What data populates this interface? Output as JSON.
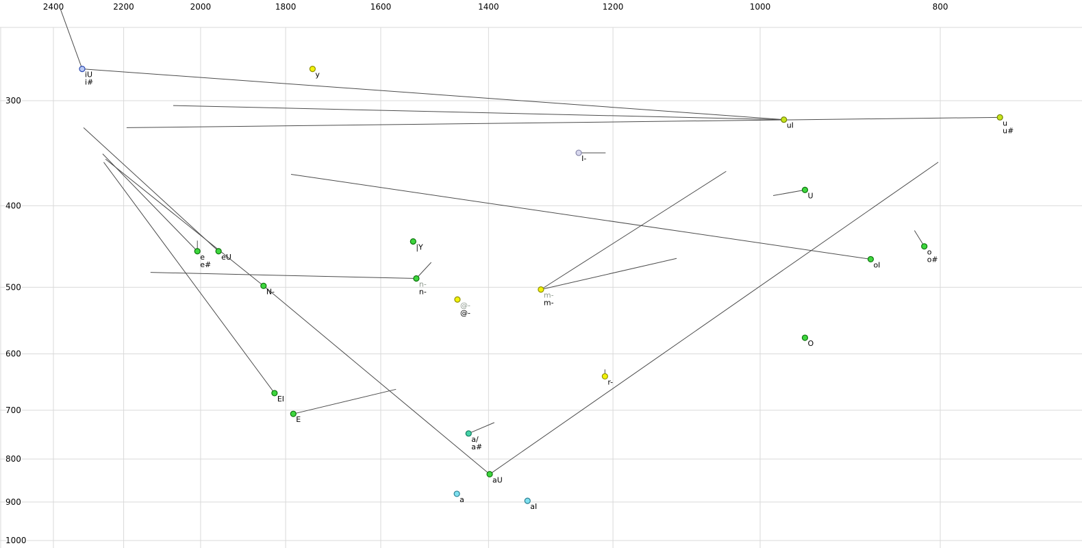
{
  "app": {
    "background": "#ffffff",
    "grid_color": "#d9d9d9",
    "line_color": "#4a4a4a",
    "label_default": "#000000",
    "label_muted": "#8f9a8f"
  },
  "palette": {
    "green": {
      "fill": "#3ed63e",
      "stroke": "#0c720c"
    },
    "yellow": {
      "fill": "#f2f20a",
      "stroke": "#8f8f00"
    },
    "yellowgreen": {
      "fill": "#c6e41e",
      "stroke": "#6f7f00"
    },
    "cyan": {
      "fill": "#7fe0ef",
      "stroke": "#2a7f92"
    },
    "blue": {
      "fill": "#b9c9f4",
      "stroke": "#2a48b0"
    },
    "lavender": {
      "fill": "#d8d8ee",
      "stroke": "#8888aa"
    },
    "teal": {
      "fill": "#46d2a8",
      "stroke": "#0e7a5c"
    }
  },
  "chart_data": {
    "type": "scatter",
    "title": "",
    "xlabel": "",
    "ylabel": "",
    "grid": true,
    "x_axis": {
      "ticks": [
        2400,
        2200,
        2000,
        1800,
        1600,
        1400,
        1200,
        1000,
        800
      ],
      "scale": "log",
      "direction": "reversed",
      "position": "top"
    },
    "y_axis": {
      "ticks": [
        300,
        400,
        500,
        600,
        700,
        800,
        900,
        1000
      ],
      "scale": "log",
      "direction": "increasing-down",
      "position": "left"
    },
    "points": [
      {
        "labels": [
          {
            "text": "iU"
          },
          {
            "text": "i#"
          }
        ],
        "f2": 2316,
        "f1": 275,
        "color": "blue"
      },
      {
        "labels": [
          {
            "text": "y"
          }
        ],
        "f2": 1741,
        "f1": 275,
        "color": "yellow"
      },
      {
        "labels": [
          {
            "text": "uI"
          }
        ],
        "f2": 971,
        "f1": 316,
        "color": "yellowgreen"
      },
      {
        "labels": [
          {
            "text": "u"
          },
          {
            "text": "u#"
          }
        ],
        "f2": 743,
        "f1": 314,
        "color": "yellowgreen"
      },
      {
        "labels": [
          {
            "text": "I-"
          }
        ],
        "f2": 1252,
        "f1": 346,
        "color": "lavender"
      },
      {
        "labels": [
          {
            "text": "U"
          }
        ],
        "f2": 946,
        "f1": 383,
        "color": "green"
      },
      {
        "labels": [
          {
            "text": "e"
          },
          {
            "text": "e#"
          }
        ],
        "f2": 2008,
        "f1": 453,
        "color": "green"
      },
      {
        "labels": [
          {
            "text": "eU"
          }
        ],
        "f2": 1956,
        "f1": 453,
        "color": "green"
      },
      {
        "labels": [
          {
            "text": "|Y"
          }
        ],
        "f2": 1537,
        "f1": 441,
        "color": "green"
      },
      {
        "labels": [
          {
            "text": "n-",
            "muted": true
          },
          {
            "text": "n-"
          }
        ],
        "f2": 1531,
        "f1": 488,
        "color": "green"
      },
      {
        "labels": [
          {
            "text": "@-",
            "muted": true
          },
          {
            "text": "@-"
          }
        ],
        "f2": 1455,
        "f1": 517,
        "color": "yellow"
      },
      {
        "labels": [
          {
            "text": "m-",
            "muted": true
          },
          {
            "text": "m-"
          }
        ],
        "f2": 1312,
        "f1": 503,
        "color": "yellow"
      },
      {
        "labels": [
          {
            "text": "o"
          },
          {
            "text": "o#"
          }
        ],
        "f2": 816,
        "f1": 447,
        "color": "green"
      },
      {
        "labels": [
          {
            "text": "oI"
          }
        ],
        "f2": 872,
        "f1": 463,
        "color": "green"
      },
      {
        "labels": [
          {
            "text": "O"
          }
        ],
        "f2": 946,
        "f1": 574,
        "color": "green"
      },
      {
        "labels": [
          {
            "text": "r-"
          }
        ],
        "f2": 1212,
        "f1": 638,
        "color": "yellow"
      },
      {
        "labels": [
          {
            "text": "N-"
          }
        ],
        "f2": 1850,
        "f1": 498,
        "color": "green"
      },
      {
        "labels": [
          {
            "text": "EI"
          }
        ],
        "f2": 1825,
        "f1": 668,
        "color": "green"
      },
      {
        "labels": [
          {
            "text": "E"
          }
        ],
        "f2": 1783,
        "f1": 707,
        "color": "green"
      },
      {
        "labels": [
          {
            "text": "a/"
          },
          {
            "text": "a#"
          }
        ],
        "f2": 1435,
        "f1": 746,
        "color": "teal"
      },
      {
        "labels": [
          {
            "text": "aU"
          }
        ],
        "f2": 1398,
        "f1": 834,
        "color": "green"
      },
      {
        "labels": [
          {
            "text": "a"
          }
        ],
        "f2": 1456,
        "f1": 880,
        "color": "cyan"
      },
      {
        "labels": [
          {
            "text": "aI"
          }
        ],
        "f2": 1334,
        "f1": 897,
        "color": "cyan"
      }
    ],
    "segments": [
      [
        2380,
        233,
        2316,
        275
      ],
      [
        2316,
        275,
        971,
        316
      ],
      [
        2069,
        304,
        971,
        316
      ],
      [
        2192,
        323,
        743,
        314
      ],
      [
        2312,
        323,
        1956,
        453
      ],
      [
        2258,
        347,
        2008,
        453
      ],
      [
        2250,
        352,
        1850,
        498
      ],
      [
        2255,
        355,
        1825,
        668
      ],
      [
        1850,
        498,
        1398,
        834
      ],
      [
        1398,
        834,
        802,
        355
      ],
      [
        872,
        463,
        1788,
        367
      ],
      [
        2128,
        480,
        1531,
        488
      ],
      [
        1312,
        503,
        1109,
        462
      ],
      [
        1312,
        503,
        1043,
        364
      ],
      [
        1252,
        346,
        1211,
        346
      ],
      [
        946,
        383,
        984,
        389
      ],
      [
        816,
        447,
        826,
        428
      ],
      [
        1435,
        746,
        1390,
        724
      ],
      [
        1783,
        707,
        1570,
        661
      ],
      [
        1212,
        638,
        1212,
        626
      ],
      [
        2008,
        453,
        2008,
        440
      ],
      [
        1531,
        488,
        1503,
        467
      ]
    ]
  }
}
